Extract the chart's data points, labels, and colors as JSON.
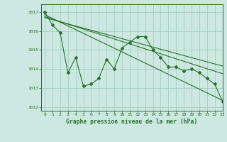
{
  "title": "Graphe pression niveau de la mer (hPa)",
  "background_color": "#cce8e0",
  "grid_color": "#99ccbb",
  "line_color": "#2d6e2d",
  "xlim": [
    -0.5,
    23
  ],
  "ylim": [
    1011.8,
    1017.4
  ],
  "yticks": [
    1012,
    1013,
    1014,
    1015,
    1016,
    1017
  ],
  "xticks": [
    0,
    1,
    2,
    3,
    4,
    5,
    6,
    7,
    8,
    9,
    10,
    11,
    12,
    13,
    14,
    15,
    16,
    17,
    18,
    19,
    20,
    21,
    22,
    23
  ],
  "series1": [
    1017.0,
    1016.3,
    1015.9,
    1013.8,
    1014.6,
    1013.1,
    1013.2,
    1013.5,
    1014.5,
    1014.0,
    1015.1,
    1015.4,
    1015.7,
    1015.7,
    1015.0,
    1014.6,
    1014.1,
    1014.1,
    1013.9,
    1014.0,
    1013.8,
    1013.5,
    1013.2,
    1012.3
  ],
  "line2": [
    [
      0,
      1016.85
    ],
    [
      23,
      1012.35
    ]
  ],
  "line3": [
    [
      0,
      1016.75
    ],
    [
      23,
      1013.75
    ]
  ],
  "line4": [
    [
      0,
      1016.7
    ],
    [
      23,
      1014.15
    ]
  ]
}
